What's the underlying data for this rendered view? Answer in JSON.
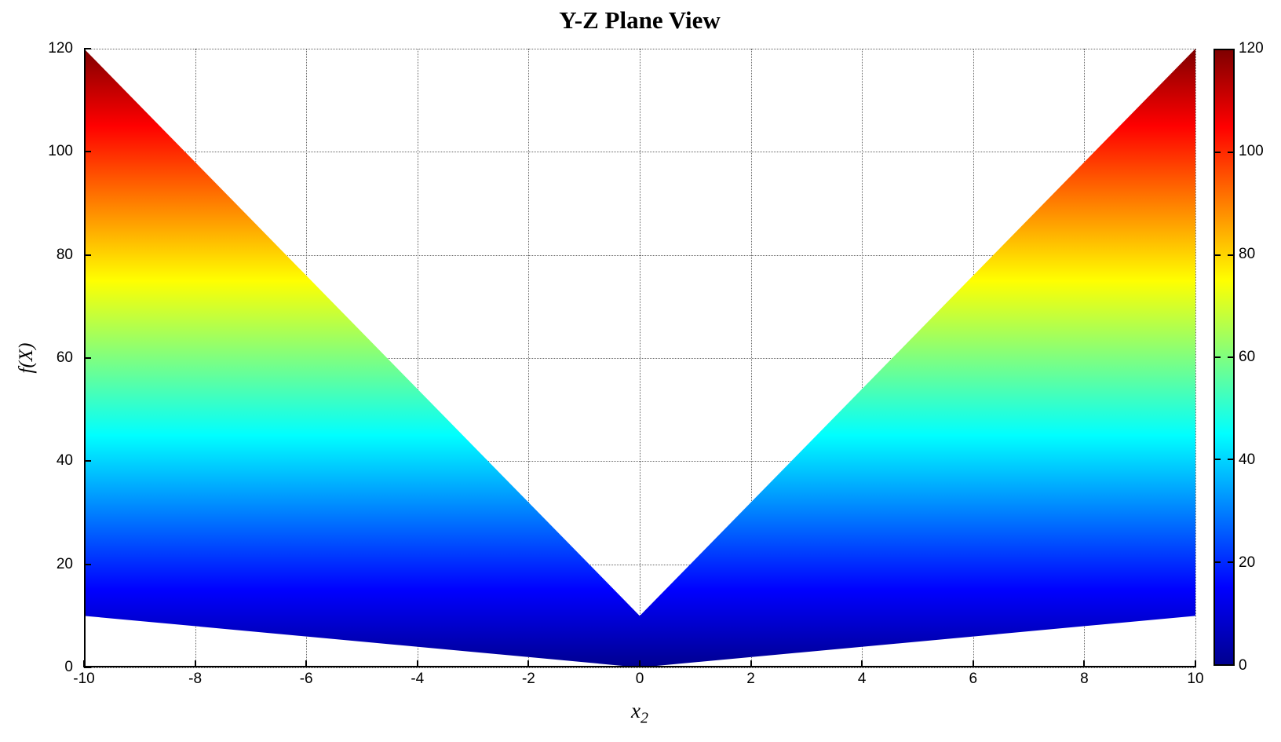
{
  "title": "Y-Z Plane View",
  "axis": {
    "ylabel": "f(X)",
    "xlabel_main": "x",
    "xlabel_sub": "2"
  },
  "colors": {
    "background": "#FFFFFF",
    "axis": "#000000",
    "grid": "#666666"
  },
  "chart_data": {
    "type": "area",
    "title": "Y-Z Plane View",
    "xlabel": "x_2",
    "ylabel": "f(X)",
    "xlim": [
      -10,
      10
    ],
    "ylim": [
      0,
      120
    ],
    "x_ticks": [
      -10,
      -8,
      -6,
      -4,
      -2,
      0,
      2,
      4,
      6,
      8,
      10
    ],
    "y_ticks": [
      0,
      20,
      40,
      60,
      80,
      100,
      120
    ],
    "grid": true,
    "grid_style": "dotted",
    "legend": "none",
    "colormap": "jet",
    "color_by": "f-value (vertical axis)",
    "description": "Y-Z plane (side) view of a 3D surface: filled V-shaped region between lower and upper envelopes, colored by f(X) with the jet colormap",
    "series": [
      {
        "name": "upper-envelope",
        "x": [
          -10,
          0,
          10
        ],
        "y": [
          120,
          10,
          120
        ]
      },
      {
        "name": "lower-envelope",
        "x": [
          -10,
          0,
          10
        ],
        "y": [
          10,
          0,
          10
        ]
      }
    ],
    "jet_stops": [
      {
        "value": 0,
        "color": "#00008F"
      },
      {
        "value": 15,
        "color": "#0000FF"
      },
      {
        "value": 45,
        "color": "#00FFFF"
      },
      {
        "value": 75,
        "color": "#FFFF00"
      },
      {
        "value": 105,
        "color": "#FF0000"
      },
      {
        "value": 120,
        "color": "#7F0000"
      }
    ],
    "colorbar": {
      "position": "right",
      "min": 0,
      "max": 120,
      "ticks": [
        0,
        20,
        40,
        60,
        80,
        100,
        120
      ]
    }
  }
}
